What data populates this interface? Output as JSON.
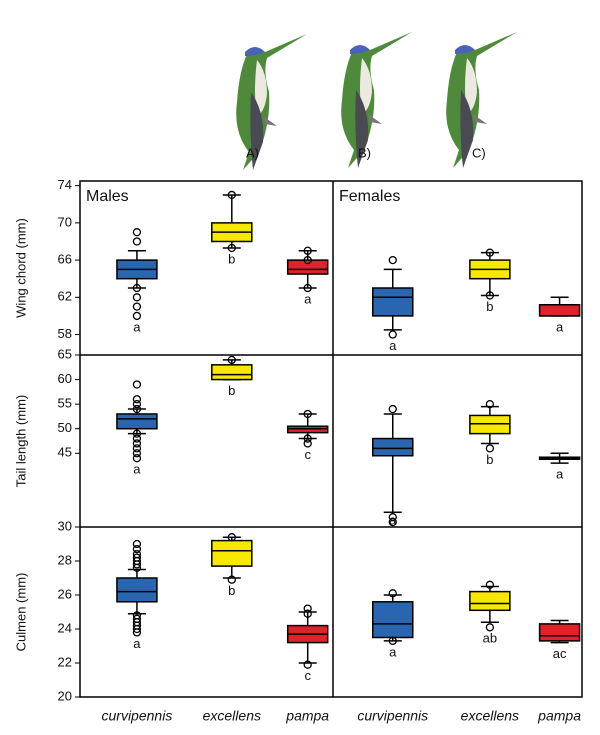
{
  "image_labels": [
    "A)",
    "B)",
    "C)"
  ],
  "chart_data": [
    {
      "type": "box",
      "title": "Males",
      "ylabel": "Wing chord (mm)",
      "ylim": [
        55.8,
        74.5
      ],
      "yticks": [
        58,
        62,
        66,
        70,
        74
      ],
      "boxes": [
        {
          "color": "#2a66b0",
          "whislo": 63,
          "q1": 64,
          "med": 65,
          "q3": 66,
          "whishi": 67,
          "fliers": [
            69,
            68,
            63,
            62,
            61,
            60
          ],
          "letter": "a"
        },
        {
          "color": "#f8e800",
          "whislo": 67.3,
          "q1": 68,
          "med": 69,
          "q3": 70,
          "whishi": 73,
          "fliers": [
            73,
            67.3
          ],
          "letter": "b"
        },
        {
          "color": "#e0222a",
          "whislo": 63,
          "q1": 64.5,
          "med": 65,
          "q3": 66,
          "whishi": 67,
          "fliers": [
            67,
            66,
            63
          ],
          "letter": "a"
        }
      ]
    },
    {
      "type": "box",
      "title": "Females",
      "ylim": [
        55.8,
        74.5
      ],
      "boxes": [
        {
          "color": "#2a66b0",
          "whislo": 58.5,
          "q1": 60,
          "med": 62,
          "q3": 63,
          "whishi": 65,
          "fliers": [
            66,
            58
          ],
          "letter": "a"
        },
        {
          "color": "#f8e800",
          "whislo": 62.2,
          "q1": 64,
          "med": 65,
          "q3": 66,
          "whishi": 66.8,
          "fliers": [
            66.8,
            62.2
          ],
          "letter": "b"
        },
        {
          "color": "#e0222a",
          "whislo": 60,
          "q1": 60,
          "med": 60,
          "q3": 61.2,
          "whishi": 62,
          "fliers": [],
          "letter": "a"
        }
      ]
    },
    {
      "type": "box",
      "ylabel": "Tail length (mm)",
      "ylim": [
        30,
        65
      ],
      "yticks": [
        30,
        45,
        50,
        55,
        60,
        65
      ],
      "boxes": [
        {
          "color": "#2a66b0",
          "whislo": 49,
          "q1": 50,
          "med": 52,
          "q3": 53,
          "whishi": 54,
          "fliers": [
            59,
            56,
            55,
            54,
            49,
            48,
            47,
            46,
            45,
            44
          ],
          "letter": "a"
        },
        {
          "color": "#f8e800",
          "whislo": 60,
          "q1": 60,
          "med": 61,
          "q3": 63,
          "whishi": 64,
          "fliers": [
            64
          ],
          "letter": "b"
        },
        {
          "color": "#e0222a",
          "whislo": 48,
          "q1": 49.2,
          "med": 50,
          "q3": 50.5,
          "whishi": 53,
          "fliers": [
            53,
            48,
            47
          ],
          "letter": "c"
        }
      ]
    },
    {
      "type": "box",
      "ylim": [
        30,
        65
      ],
      "boxes": [
        {
          "color": "#2a66b0",
          "whislo": 33,
          "q1": 44.5,
          "med": 46,
          "q3": 48,
          "whishi": 53,
          "fliers": [
            54,
            32,
            31
          ],
          "letter": "a"
        },
        {
          "color": "#f8e800",
          "whislo": 47,
          "q1": 49,
          "med": 51,
          "q3": 52.7,
          "whishi": 54.5,
          "fliers": [
            55,
            46
          ],
          "letter": "b"
        },
        {
          "color": "#e0222a",
          "whislo": 43,
          "q1": 43.8,
          "med": 44,
          "q3": 44.2,
          "whishi": 45,
          "fliers": [],
          "letter": "a"
        }
      ]
    },
    {
      "type": "box",
      "ylabel": "Culmen (mm)",
      "ylim": [
        20,
        30
      ],
      "yticks": [
        20,
        22,
        24,
        26,
        28
      ],
      "categories": [
        "curvipennis",
        "excellens",
        "pampa"
      ],
      "boxes": [
        {
          "color": "#2a66b0",
          "whislo": 24.9,
          "q1": 25.6,
          "med": 26.2,
          "q3": 27,
          "whishi": 27.5,
          "fliers": [
            29,
            28.7,
            28.4,
            28.2,
            28,
            27.8,
            27.6,
            24.8,
            24.6,
            24.4,
            24.2,
            24,
            23.8
          ],
          "letter": "a"
        },
        {
          "color": "#f8e800",
          "whislo": 27,
          "q1": 27.7,
          "med": 28.6,
          "q3": 29.2,
          "whishi": 29.4,
          "fliers": [
            29.4,
            26.9
          ],
          "letter": "b"
        },
        {
          "color": "#e0222a",
          "whislo": 22,
          "q1": 23.2,
          "med": 23.7,
          "q3": 24.2,
          "whishi": 25,
          "fliers": [
            25.2,
            24.9,
            21.9
          ],
          "letter": "c"
        }
      ]
    },
    {
      "type": "box",
      "ylim": [
        20,
        30
      ],
      "categories": [
        "curvipennis",
        "excellens",
        "pampa"
      ],
      "boxes": [
        {
          "color": "#2a66b0",
          "whislo": 23.3,
          "q1": 23.5,
          "med": 24.3,
          "q3": 25.6,
          "whishi": 26,
          "fliers": [
            26.1,
            23.3
          ],
          "letter": "a"
        },
        {
          "color": "#f8e800",
          "whislo": 24.4,
          "q1": 25.1,
          "med": 25.5,
          "q3": 26.2,
          "whishi": 26.5,
          "fliers": [
            26.6,
            24.1
          ],
          "letter": "ab"
        },
        {
          "color": "#e0222a",
          "whislo": 23.2,
          "q1": 23.3,
          "med": 23.6,
          "q3": 24.3,
          "whishi": 24.5,
          "fliers": [],
          "letter": "ac"
        }
      ]
    }
  ]
}
